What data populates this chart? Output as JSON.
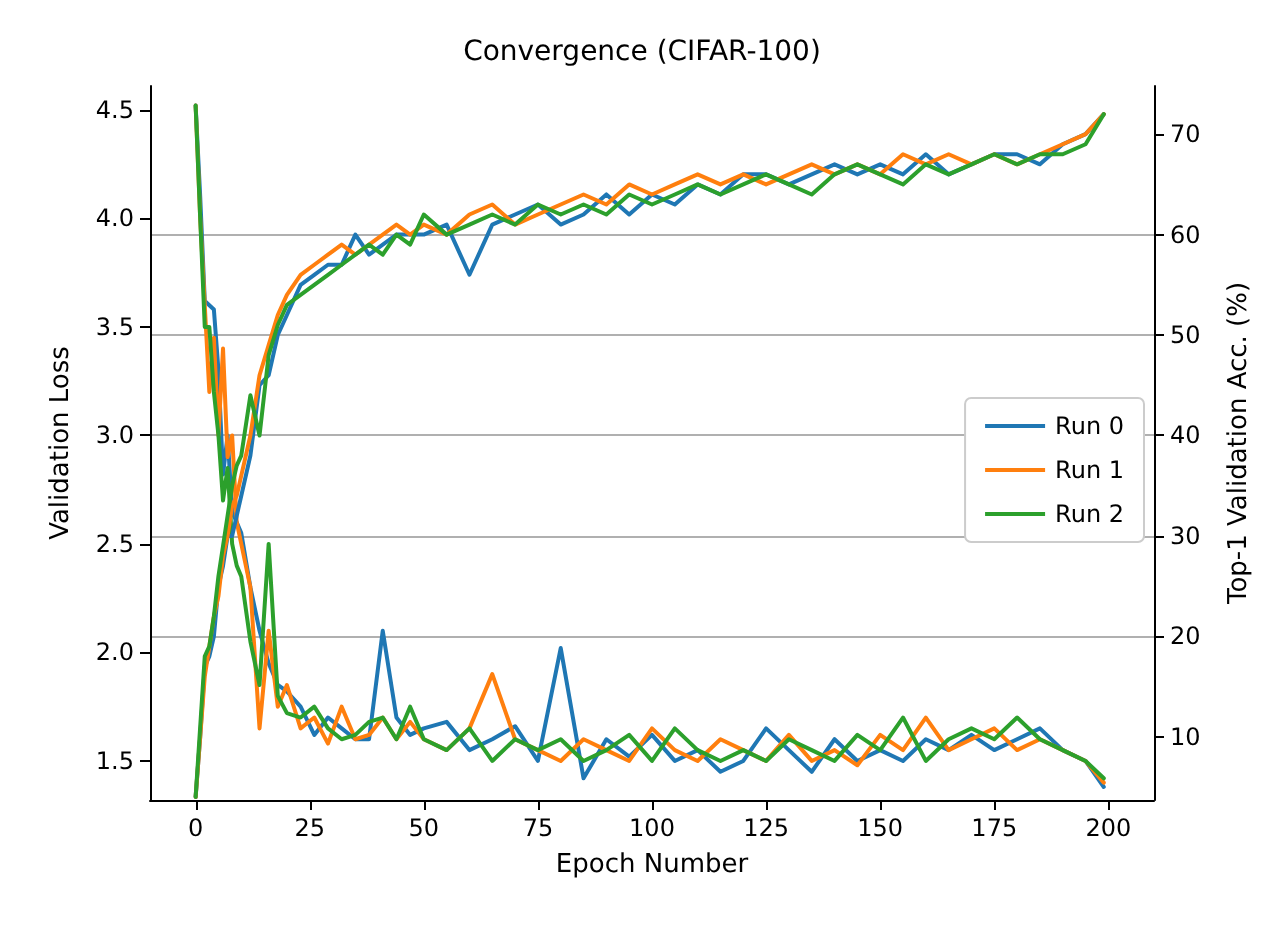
{
  "chart_data": {
    "type": "line",
    "title": "Convergence (CIFAR-100)",
    "xlabel": "Epoch Number",
    "ylabel": "Validation Loss",
    "y2label": "Top-1 Validation Acc. (%)",
    "x": [
      0,
      1,
      2,
      3,
      4,
      5,
      6,
      7,
      8,
      9,
      10,
      12,
      14,
      16,
      18,
      20,
      23,
      26,
      29,
      32,
      35,
      38,
      41,
      44,
      47,
      50,
      55,
      60,
      65,
      70,
      75,
      80,
      85,
      90,
      95,
      100,
      105,
      110,
      115,
      120,
      125,
      130,
      135,
      140,
      145,
      150,
      155,
      160,
      165,
      170,
      175,
      180,
      185,
      190,
      195,
      199
    ],
    "xlim": [
      -10,
      210
    ],
    "xticks": [
      0,
      25,
      50,
      75,
      100,
      125,
      150,
      175,
      200
    ],
    "ylim": [
      1.32,
      4.61
    ],
    "yticks": [
      1.5,
      {
        "value": 2,
        "label": "2.0"
      },
      2.5,
      {
        "value": 3,
        "label": "3.0"
      },
      3.5,
      {
        "value": 4,
        "label": "4.0"
      },
      4.5
    ],
    "y2lim": [
      3.7,
      74.8
    ],
    "y2ticks": [
      10,
      20,
      30,
      40,
      50,
      60,
      70
    ],
    "grid": "y2",
    "legend": "right",
    "marker": "none",
    "line_style": "solid",
    "series": [
      {
        "name": "Run 0",
        "color": "#1f77b4",
        "values": [
          4.52,
          4.1,
          3.62,
          3.6,
          3.58,
          3.3,
          2.82,
          3.0,
          2.65,
          2.6,
          2.55,
          2.3,
          2.1,
          1.95,
          1.85,
          1.82,
          1.75,
          1.62,
          1.7,
          1.65,
          1.6,
          1.6,
          2.1,
          1.7,
          1.62,
          1.65,
          1.68,
          1.55,
          1.6,
          1.66,
          1.5,
          2.02,
          1.42,
          1.6,
          1.52,
          1.62,
          1.5,
          1.55,
          1.45,
          1.5,
          1.65,
          1.55,
          1.45,
          1.6,
          1.5,
          1.55,
          1.5,
          1.6,
          1.55,
          1.62,
          1.55,
          1.6,
          1.65,
          1.55,
          1.5,
          1.38
        ]
      },
      {
        "name": "Run 1",
        "color": "#ff7f0e",
        "values": [
          4.52,
          4.0,
          3.6,
          3.2,
          3.45,
          3.0,
          3.4,
          2.9,
          3.0,
          2.6,
          2.5,
          2.3,
          1.65,
          2.1,
          1.75,
          1.85,
          1.65,
          1.7,
          1.58,
          1.75,
          1.6,
          1.62,
          1.7,
          1.6,
          1.68,
          1.6,
          1.55,
          1.65,
          1.9,
          1.6,
          1.55,
          1.5,
          1.6,
          1.55,
          1.5,
          1.65,
          1.55,
          1.5,
          1.6,
          1.55,
          1.5,
          1.62,
          1.5,
          1.55,
          1.48,
          1.62,
          1.55,
          1.7,
          1.55,
          1.6,
          1.65,
          1.55,
          1.6,
          1.55,
          1.5,
          1.4
        ]
      },
      {
        "name": "Run 2",
        "color": "#2ca02c",
        "values": [
          4.52,
          4.0,
          3.5,
          3.5,
          3.2,
          3.0,
          2.7,
          2.85,
          2.5,
          2.4,
          2.35,
          2.05,
          1.85,
          2.5,
          1.8,
          1.72,
          1.7,
          1.75,
          1.65,
          1.6,
          1.62,
          1.68,
          1.7,
          1.6,
          1.75,
          1.6,
          1.55,
          1.65,
          1.5,
          1.6,
          1.55,
          1.6,
          1.5,
          1.55,
          1.62,
          1.5,
          1.65,
          1.55,
          1.5,
          1.55,
          1.5,
          1.6,
          1.55,
          1.5,
          1.62,
          1.55,
          1.7,
          1.5,
          1.6,
          1.65,
          1.6,
          1.7,
          1.6,
          1.55,
          1.5,
          1.42
        ]
      },
      {
        "color": "#1f77b4",
        "axis": "y2",
        "values": [
          4,
          10,
          17,
          18,
          20,
          25,
          27,
          30,
          30,
          32,
          34,
          38,
          45,
          46,
          50,
          52,
          55,
          56,
          57,
          57,
          60,
          58,
          59,
          60,
          60,
          60,
          61,
          56,
          61,
          62,
          63,
          61,
          62,
          64,
          62,
          64,
          63,
          65,
          64,
          66,
          66,
          65,
          66,
          67,
          66,
          67,
          66,
          68,
          66,
          67,
          68,
          68,
          67,
          69,
          70,
          72
        ]
      },
      {
        "color": "#ff7f0e",
        "axis": "y2",
        "values": [
          4,
          10,
          16,
          19,
          22,
          24,
          28,
          30,
          33,
          34,
          36,
          40,
          46,
          49,
          52,
          54,
          56,
          57,
          58,
          59,
          58,
          59,
          60,
          61,
          60,
          61,
          60,
          62,
          63,
          61,
          62,
          63,
          64,
          63,
          65,
          64,
          65,
          66,
          65,
          66,
          65,
          66,
          67,
          66,
          67,
          66,
          68,
          67,
          68,
          67,
          68,
          67,
          68,
          69,
          70,
          72
        ]
      },
      {
        "color": "#2ca02c",
        "axis": "y2",
        "values": [
          4,
          11,
          18,
          19,
          22,
          26,
          29,
          32,
          35,
          37,
          38,
          44,
          40,
          48,
          51,
          53,
          54,
          55,
          56,
          57,
          58,
          59,
          58,
          60,
          59,
          62,
          60,
          61,
          62,
          61,
          63,
          62,
          63,
          62,
          64,
          63,
          64,
          65,
          64,
          65,
          66,
          65,
          64,
          66,
          67,
          66,
          65,
          67,
          66,
          67,
          68,
          67,
          68,
          68,
          69,
          72
        ]
      }
    ]
  }
}
